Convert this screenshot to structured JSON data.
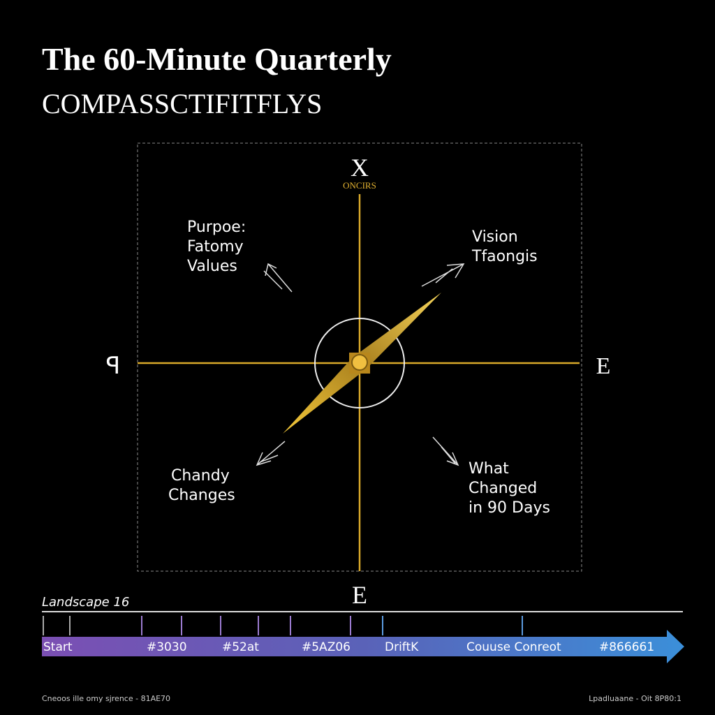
{
  "header": {
    "title": "The 60-Minute Quarterly",
    "subtitle": "COMPASSCTIFITFLYS"
  },
  "compass": {
    "north": "X",
    "north_sub": "ONCIRS",
    "west": "ꟼ",
    "east": "E",
    "south": "E"
  },
  "quadrants": [
    {
      "lines": [
        "Purpoe:",
        "Fatomy",
        "Values"
      ]
    },
    {
      "lines": [
        "Vision",
        "Tfaongis"
      ]
    },
    {
      "lines": [
        "Chandy",
        "Changes"
      ]
    },
    {
      "lines": [
        "What",
        "Changed",
        "in 90 Days"
      ]
    }
  ],
  "timeline": {
    "label": "Landscape 16",
    "stops": [
      "Start",
      "#3030",
      "#52at",
      "#5AZ06",
      "DriftK",
      "Couuse Conreot",
      "#866661"
    ]
  },
  "footer": {
    "left": "Cneoos ille omy sjrence - 81AE70",
    "right": "Lpadluaane - Oit 8P80:1"
  }
}
